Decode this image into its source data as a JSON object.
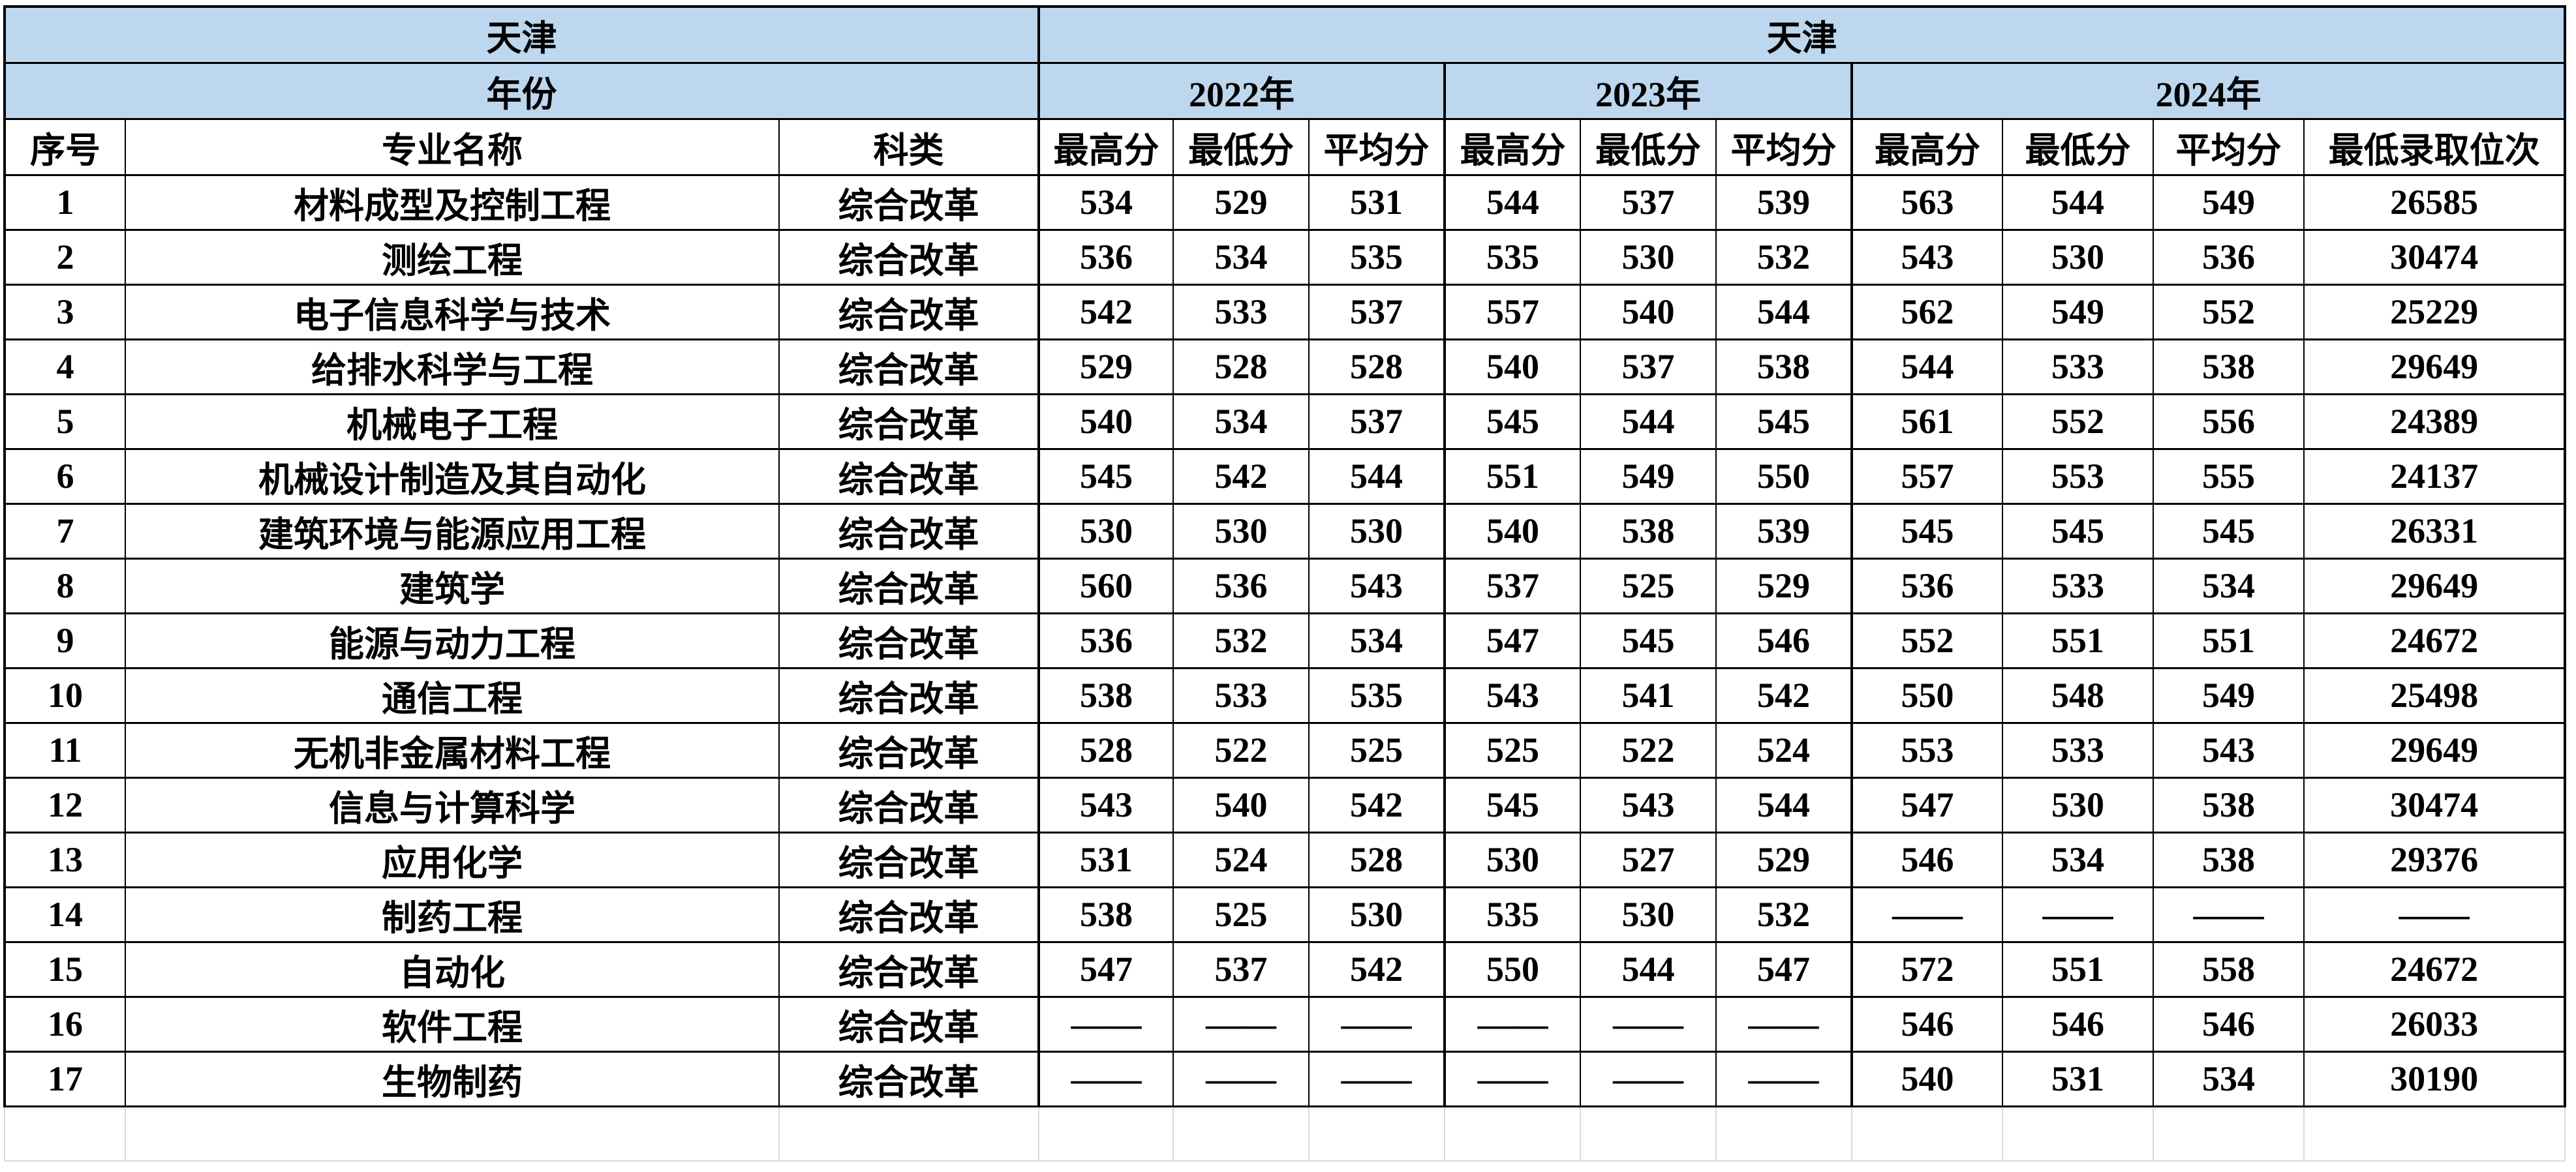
{
  "table": {
    "region_left": "天津",
    "region_right": "天津",
    "year_label": "年份",
    "years": [
      "2022年",
      "2023年",
      "2024年"
    ],
    "col_headers": {
      "index": "序号",
      "major": "专业名称",
      "category": "科类",
      "max": "最高分",
      "min": "最低分",
      "avg": "平均分",
      "rank": "最低录取位次"
    },
    "empty_value": "——",
    "colors": {
      "header_fill": "#BDD7EE",
      "border": "#000000",
      "empty_row_border": "#D9D9D9"
    },
    "rows": [
      {
        "no": "1",
        "major": "材料成型及控制工程",
        "category": "综合改革",
        "y2022": [
          "534",
          "529",
          "531"
        ],
        "y2023": [
          "544",
          "537",
          "539"
        ],
        "y2024": [
          "563",
          "544",
          "549",
          "26585"
        ]
      },
      {
        "no": "2",
        "major": "测绘工程",
        "category": "综合改革",
        "y2022": [
          "536",
          "534",
          "535"
        ],
        "y2023": [
          "535",
          "530",
          "532"
        ],
        "y2024": [
          "543",
          "530",
          "536",
          "30474"
        ]
      },
      {
        "no": "3",
        "major": "电子信息科学与技术",
        "category": "综合改革",
        "y2022": [
          "542",
          "533",
          "537"
        ],
        "y2023": [
          "557",
          "540",
          "544"
        ],
        "y2024": [
          "562",
          "549",
          "552",
          "25229"
        ]
      },
      {
        "no": "4",
        "major": "给排水科学与工程",
        "category": "综合改革",
        "y2022": [
          "529",
          "528",
          "528"
        ],
        "y2023": [
          "540",
          "537",
          "538"
        ],
        "y2024": [
          "544",
          "533",
          "538",
          "29649"
        ]
      },
      {
        "no": "5",
        "major": "机械电子工程",
        "category": "综合改革",
        "y2022": [
          "540",
          "534",
          "537"
        ],
        "y2023": [
          "545",
          "544",
          "545"
        ],
        "y2024": [
          "561",
          "552",
          "556",
          "24389"
        ]
      },
      {
        "no": "6",
        "major": "机械设计制造及其自动化",
        "category": "综合改革",
        "y2022": [
          "545",
          "542",
          "544"
        ],
        "y2023": [
          "551",
          "549",
          "550"
        ],
        "y2024": [
          "557",
          "553",
          "555",
          "24137"
        ]
      },
      {
        "no": "7",
        "major": "建筑环境与能源应用工程",
        "category": "综合改革",
        "y2022": [
          "530",
          "530",
          "530"
        ],
        "y2023": [
          "540",
          "538",
          "539"
        ],
        "y2024": [
          "545",
          "545",
          "545",
          "26331"
        ]
      },
      {
        "no": "8",
        "major": "建筑学",
        "category": "综合改革",
        "y2022": [
          "560",
          "536",
          "543"
        ],
        "y2023": [
          "537",
          "525",
          "529"
        ],
        "y2024": [
          "536",
          "533",
          "534",
          "29649"
        ]
      },
      {
        "no": "9",
        "major": "能源与动力工程",
        "category": "综合改革",
        "y2022": [
          "536",
          "532",
          "534"
        ],
        "y2023": [
          "547",
          "545",
          "546"
        ],
        "y2024": [
          "552",
          "551",
          "551",
          "24672"
        ]
      },
      {
        "no": "10",
        "major": "通信工程",
        "category": "综合改革",
        "y2022": [
          "538",
          "533",
          "535"
        ],
        "y2023": [
          "543",
          "541",
          "542"
        ],
        "y2024": [
          "550",
          "548",
          "549",
          "25498"
        ]
      },
      {
        "no": "11",
        "major": "无机非金属材料工程",
        "category": "综合改革",
        "y2022": [
          "528",
          "522",
          "525"
        ],
        "y2023": [
          "525",
          "522",
          "524"
        ],
        "y2024": [
          "553",
          "533",
          "543",
          "29649"
        ]
      },
      {
        "no": "12",
        "major": "信息与计算科学",
        "category": "综合改革",
        "y2022": [
          "543",
          "540",
          "542"
        ],
        "y2023": [
          "545",
          "543",
          "544"
        ],
        "y2024": [
          "547",
          "530",
          "538",
          "30474"
        ]
      },
      {
        "no": "13",
        "major": "应用化学",
        "category": "综合改革",
        "y2022": [
          "531",
          "524",
          "528"
        ],
        "y2023": [
          "530",
          "527",
          "529"
        ],
        "y2024": [
          "546",
          "534",
          "538",
          "29376"
        ]
      },
      {
        "no": "14",
        "major": "制药工程",
        "category": "综合改革",
        "y2022": [
          "538",
          "525",
          "530"
        ],
        "y2023": [
          "535",
          "530",
          "532"
        ],
        "y2024": [
          "——",
          "——",
          "——",
          "——"
        ]
      },
      {
        "no": "15",
        "major": "自动化",
        "category": "综合改革",
        "y2022": [
          "547",
          "537",
          "542"
        ],
        "y2023": [
          "550",
          "544",
          "547"
        ],
        "y2024": [
          "572",
          "551",
          "558",
          "24672"
        ]
      },
      {
        "no": "16",
        "major": "软件工程",
        "category": "综合改革",
        "y2022": [
          "——",
          "——",
          "——"
        ],
        "y2023": [
          "——",
          "——",
          "——"
        ],
        "y2024": [
          "546",
          "546",
          "546",
          "26033"
        ]
      },
      {
        "no": "17",
        "major": "生物制药",
        "category": "综合改革",
        "y2022": [
          "——",
          "——",
          "——"
        ],
        "y2023": [
          "——",
          "——",
          "——"
        ],
        "y2024": [
          "540",
          "531",
          "534",
          "30190"
        ]
      }
    ]
  }
}
